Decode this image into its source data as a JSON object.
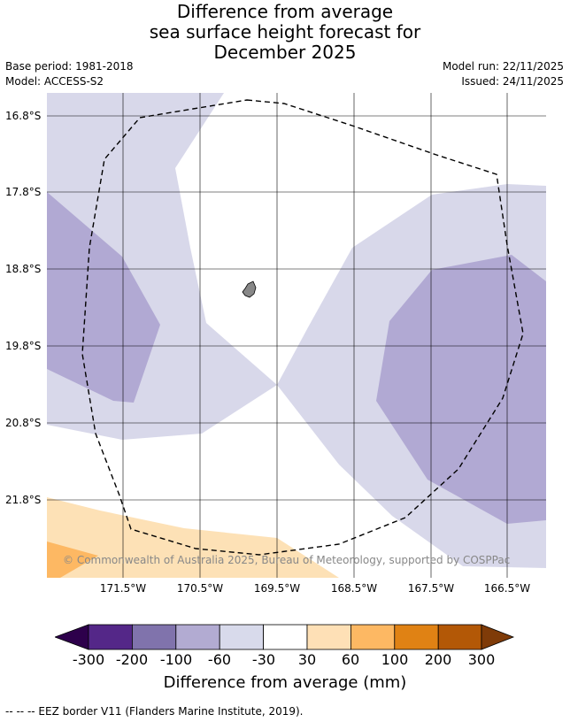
{
  "header": {
    "title_lines": [
      "Difference from average",
      "sea surface height forecast for",
      "December 2025"
    ],
    "base_period": "Base period: 1981-2018",
    "model": "Model: ACCESS-S2",
    "model_run": "Model run: 22/11/2025",
    "issued": "Issued: 24/11/2025"
  },
  "map": {
    "lat_labels": [
      "16.8°S",
      "17.8°S",
      "18.8°S",
      "19.8°S",
      "20.8°S",
      "21.8°S"
    ],
    "lon_labels": [
      "171.5°W",
      "170.5°W",
      "169.5°W",
      "168.5°W",
      "167.5°W",
      "166.5°W"
    ],
    "copyright": "© Commonwealth of Australia 2025, Bureau of Meteorology, supported by COSPPac",
    "colors": {
      "neg_60_30": "#d8d8ea",
      "neg_100_60": "#b1a9d3",
      "pos_30_60": "#fde1b6",
      "pos_60_100": "#fdb863",
      "land": "#888888",
      "grid": "#000000"
    }
  },
  "colorbar": {
    "ticks": [
      "-300",
      "-200",
      "-100",
      "-60",
      "-30",
      "30",
      "60",
      "100",
      "200",
      "300"
    ],
    "colors": [
      "#2d004b",
      "#542788",
      "#8073ac",
      "#b2abd2",
      "#d8daeb",
      "#ffffff",
      "#fee0b6",
      "#fdb863",
      "#e08214",
      "#b35806",
      "#7f3b08"
    ],
    "label": "Difference from average (mm)"
  },
  "footer": {
    "legend": "--  --  -- EEZ border V11 (Flanders Marine Institute, 2019)."
  }
}
